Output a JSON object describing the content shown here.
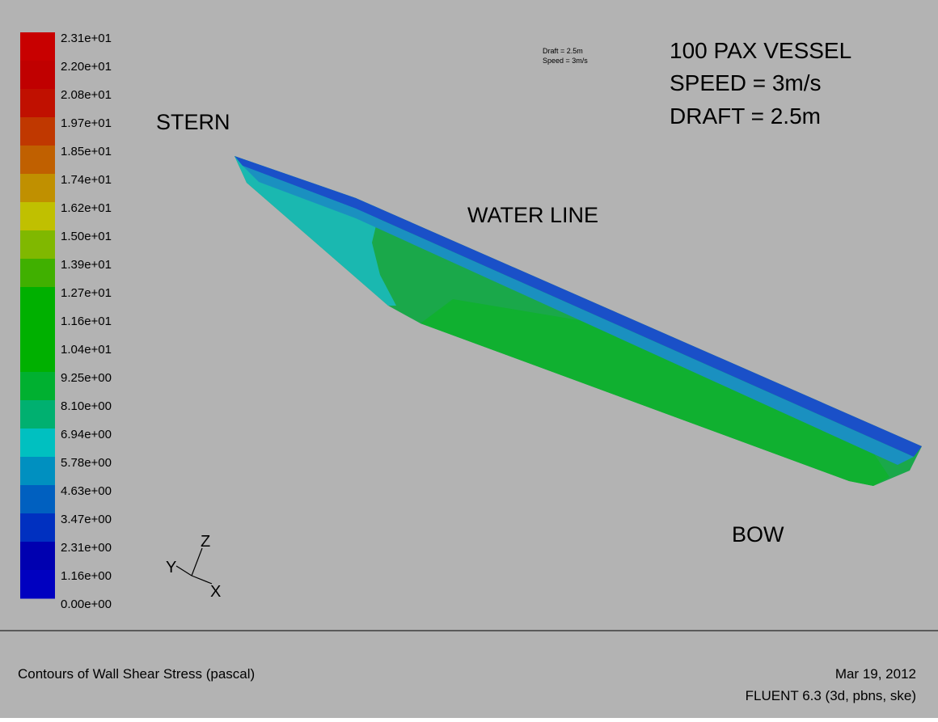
{
  "legend": {
    "labels": [
      "2.31e+01",
      "2.20e+01",
      "2.08e+01",
      "1.97e+01",
      "1.85e+01",
      "1.74e+01",
      "1.62e+01",
      "1.50e+01",
      "1.39e+01",
      "1.27e+01",
      "1.16e+01",
      "1.04e+01",
      "9.25e+00",
      "8.10e+00",
      "6.94e+00",
      "5.78e+00",
      "4.63e+00",
      "3.47e+00",
      "2.31e+00",
      "1.16e+00",
      "0.00e+00"
    ],
    "colors": [
      "#c80000",
      "#c00000",
      "#c01000",
      "#c03800",
      "#c06000",
      "#c09000",
      "#c0c000",
      "#80b800",
      "#40b000",
      "#00b000",
      "#00b000",
      "#00b000",
      "#00b030",
      "#00b070",
      "#00c0c0",
      "#0090c0",
      "#0060c0",
      "#0030c0",
      "#0000b0",
      "#0000c0"
    ]
  },
  "annotations": {
    "stern": "STERN",
    "water_line": "WATER LINE",
    "bow": "BOW",
    "vessel": "100 PAX VESSEL",
    "speed": "SPEED = 3m/s",
    "draft": "DRAFT = 2.5m",
    "small_draft": "Draft = 2.5m",
    "small_speed": "Speed = 3m/s"
  },
  "axes": {
    "z": "Z",
    "y": "Y",
    "x": "X"
  },
  "footer": {
    "title": "Contours of Wall Shear Stress (pascal)",
    "date": "Mar 19, 2012",
    "software": "FLUENT 6.3 (3d, pbns, ske)"
  }
}
